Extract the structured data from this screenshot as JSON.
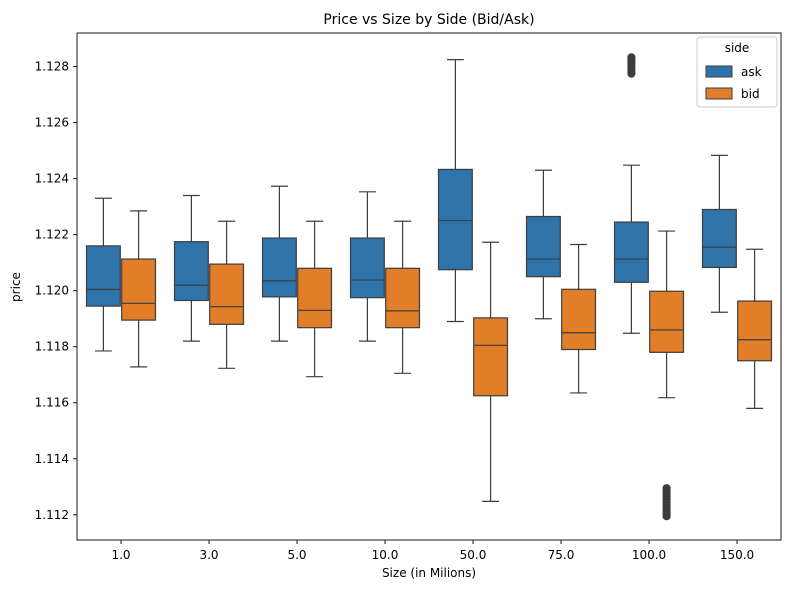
{
  "chart_data": {
    "type": "box",
    "title": "Price vs Size by Side (Bid/Ask)",
    "xlabel": "Size (in Milions)",
    "ylabel": "price",
    "categories": [
      "1.0",
      "3.0",
      "5.0",
      "10.0",
      "50.0",
      "75.0",
      "100.0",
      "150.0"
    ],
    "ylim": [
      1.1111,
      1.1292
    ],
    "yticks": [
      1.112,
      1.114,
      1.116,
      1.118,
      1.12,
      1.122,
      1.124,
      1.126,
      1.128
    ],
    "ytick_labels": [
      "1.112",
      "1.114",
      "1.116",
      "1.118",
      "1.120",
      "1.122",
      "1.124",
      "1.126",
      "1.128"
    ],
    "grid": false,
    "legend": {
      "title": "side",
      "position": "top-right"
    },
    "series": [
      {
        "name": "ask",
        "color": "#2e74aa",
        "boxes": [
          {
            "whisker_low": 1.11785,
            "q1": 1.11945,
            "median": 1.12005,
            "q3": 1.1216,
            "whisker_high": 1.1233,
            "outliers": []
          },
          {
            "whisker_low": 1.1182,
            "q1": 1.11965,
            "median": 1.1202,
            "q3": 1.12175,
            "whisker_high": 1.1234,
            "outliers": []
          },
          {
            "whisker_low": 1.1182,
            "q1": 1.11978,
            "median": 1.12035,
            "q3": 1.12188,
            "whisker_high": 1.12373,
            "outliers": []
          },
          {
            "whisker_low": 1.1182,
            "q1": 1.11975,
            "median": 1.12038,
            "q3": 1.12188,
            "whisker_high": 1.12353,
            "outliers": []
          },
          {
            "whisker_low": 1.1189,
            "q1": 1.12075,
            "median": 1.1225,
            "q3": 1.12433,
            "whisker_high": 1.12825,
            "outliers": []
          },
          {
            "whisker_low": 1.119,
            "q1": 1.1205,
            "median": 1.12113,
            "q3": 1.12265,
            "whisker_high": 1.1243,
            "outliers": []
          },
          {
            "whisker_low": 1.11848,
            "q1": 1.1203,
            "median": 1.12113,
            "q3": 1.12245,
            "whisker_high": 1.12448,
            "outliers": [
              1.12775,
              1.12785,
              1.12795,
              1.12805,
              1.12815,
              1.12825,
              1.12833
            ]
          },
          {
            "whisker_low": 1.11923,
            "q1": 1.12083,
            "median": 1.12155,
            "q3": 1.1229,
            "whisker_high": 1.12483,
            "outliers": []
          }
        ]
      },
      {
        "name": "bid",
        "color": "#e17e27",
        "boxes": [
          {
            "whisker_low": 1.11728,
            "q1": 1.11895,
            "median": 1.11955,
            "q3": 1.12113,
            "whisker_high": 1.12285,
            "outliers": []
          },
          {
            "whisker_low": 1.11723,
            "q1": 1.1188,
            "median": 1.11943,
            "q3": 1.12095,
            "whisker_high": 1.12248,
            "outliers": []
          },
          {
            "whisker_low": 1.11693,
            "q1": 1.11868,
            "median": 1.1193,
            "q3": 1.1208,
            "whisker_high": 1.12248,
            "outliers": []
          },
          {
            "whisker_low": 1.11705,
            "q1": 1.11868,
            "median": 1.11928,
            "q3": 1.1208,
            "whisker_high": 1.12248,
            "outliers": []
          },
          {
            "whisker_low": 1.11248,
            "q1": 1.11625,
            "median": 1.11805,
            "q3": 1.11903,
            "whisker_high": 1.12173,
            "outliers": []
          },
          {
            "whisker_low": 1.11635,
            "q1": 1.1179,
            "median": 1.1185,
            "q3": 1.12005,
            "whisker_high": 1.12165,
            "outliers": []
          },
          {
            "whisker_low": 1.11618,
            "q1": 1.1178,
            "median": 1.1186,
            "q3": 1.11998,
            "whisker_high": 1.12213,
            "outliers": [
              1.11195,
              1.11205,
              1.11215,
              1.11225,
              1.11235,
              1.11245,
              1.11255,
              1.11265,
              1.11275,
              1.11285,
              1.11295
            ]
          },
          {
            "whisker_low": 1.1158,
            "q1": 1.1175,
            "median": 1.11825,
            "q3": 1.11963,
            "whisker_high": 1.12148,
            "outliers": []
          }
        ]
      }
    ]
  }
}
